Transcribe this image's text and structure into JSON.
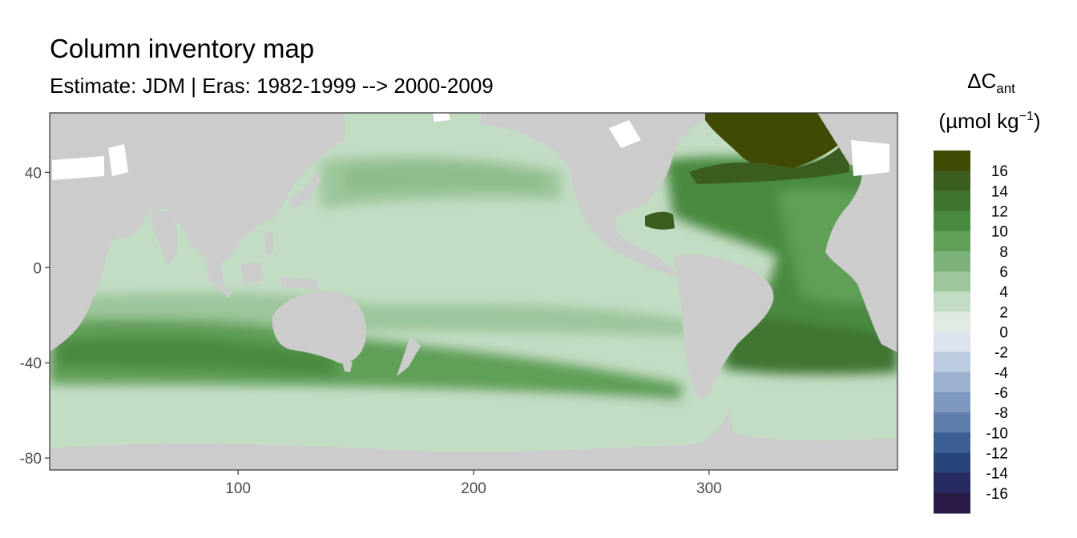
{
  "title": "Column inventory map",
  "subtitle": "Estimate: JDM  | Eras: 1982-1999 --> 2000-2009",
  "legend": {
    "title_main": "ΔC",
    "title_sub": "ant",
    "unit_main": "(µmol kg",
    "unit_sup": "−1",
    "unit_close": ")",
    "labels": [
      "16",
      "14",
      "12",
      "10",
      "8",
      "6",
      "4",
      "2",
      "0",
      "-2",
      "-4",
      "-6",
      "-8",
      "-10",
      "-12",
      "-14",
      "-16"
    ],
    "colors": [
      "#414a02",
      "#3b5e20",
      "#3f7530",
      "#4a8a40",
      "#5f9f57",
      "#7db27a",
      "#9dc69b",
      "#c3dcc4",
      "#e1ebe3",
      "#dce3ec",
      "#bccbe0",
      "#9db2cf",
      "#7f98bf",
      "#5f7eae",
      "#3a5f95",
      "#26437a",
      "#272a60",
      "#2a1b48"
    ]
  },
  "map": {
    "ocean_base": "#c3dcc4",
    "land": "#cccccc",
    "no_data": "#ffffff"
  },
  "chart_data": {
    "type": "heatmap",
    "title": "Column inventory map",
    "subtitle": "Estimate: JDM  | Eras: 1982-1999 --> 2000-2009",
    "xlabel": "",
    "ylabel": "",
    "xlim": [
      20,
      380
    ],
    "ylim": [
      -85,
      65
    ],
    "x_ticks": [
      100,
      200,
      300
    ],
    "y_ticks": [
      40,
      0,
      -40,
      -80
    ],
    "legend_title": "ΔCant (µmol kg−1)",
    "legend_breaks": [
      16,
      14,
      12,
      10,
      8,
      6,
      4,
      2,
      0,
      -2,
      -4,
      -6,
      -8,
      -10,
      -12,
      -14,
      -16
    ],
    "grid": false,
    "legend_position": "right"
  }
}
